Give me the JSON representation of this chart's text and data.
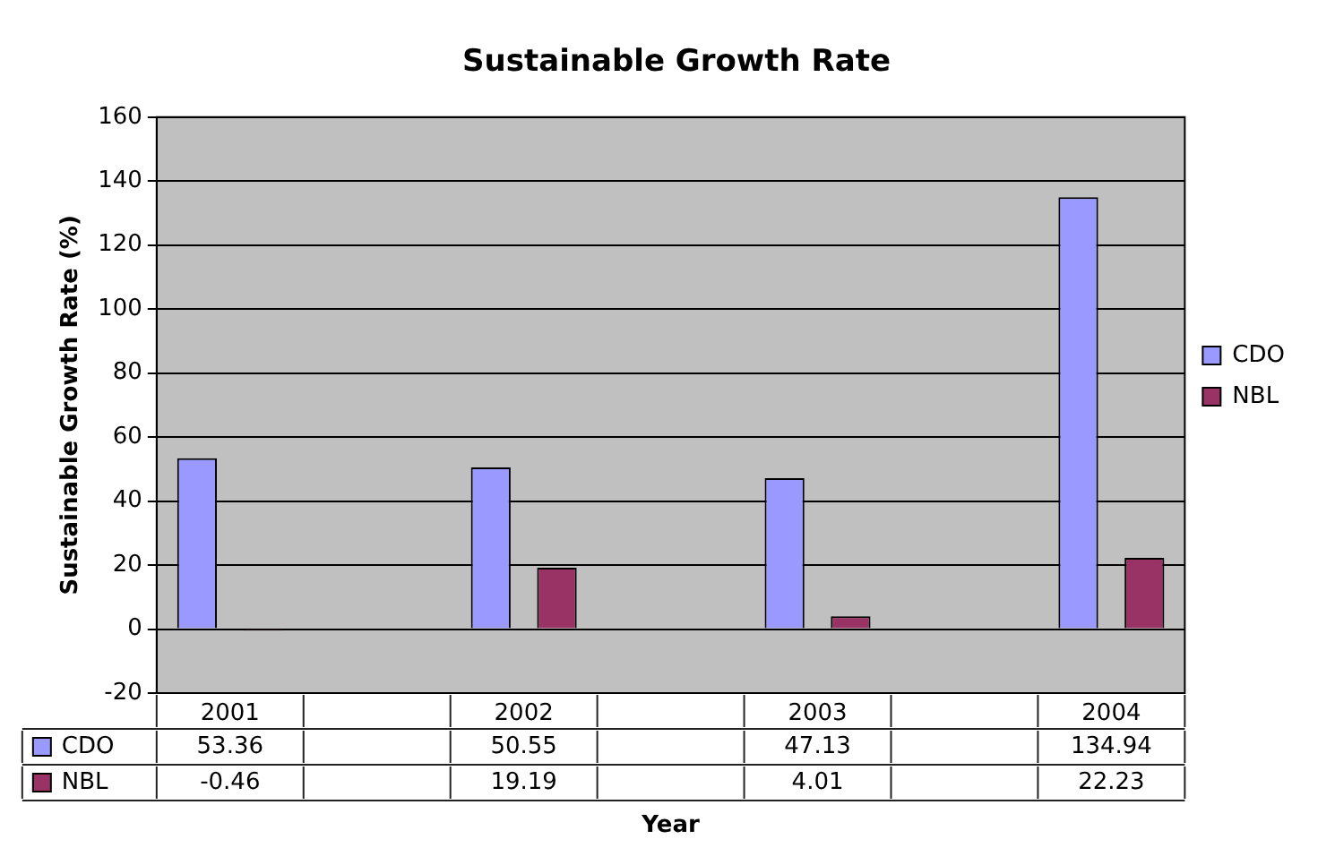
{
  "chart_data": {
    "type": "bar",
    "title": "Sustainable Growth Rate",
    "xlabel": "Year",
    "ylabel": "Sustainable Growth Rate (%)",
    "categories": [
      "2001",
      null,
      "2002",
      null,
      "2003",
      null,
      "2004"
    ],
    "series": [
      {
        "name": "CDO",
        "color": "#9999ff",
        "values": [
          53.36,
          null,
          50.55,
          null,
          47.13,
          null,
          134.94
        ]
      },
      {
        "name": "NBL",
        "color": "#993366",
        "values": [
          -0.46,
          null,
          19.19,
          null,
          4.01,
          null,
          22.23
        ]
      }
    ],
    "ylim": [
      -20,
      160
    ],
    "yticks": [
      -20,
      0,
      20,
      40,
      60,
      80,
      100,
      120,
      140,
      160
    ],
    "grid": "y",
    "legend": "right",
    "data_labels": true
  }
}
